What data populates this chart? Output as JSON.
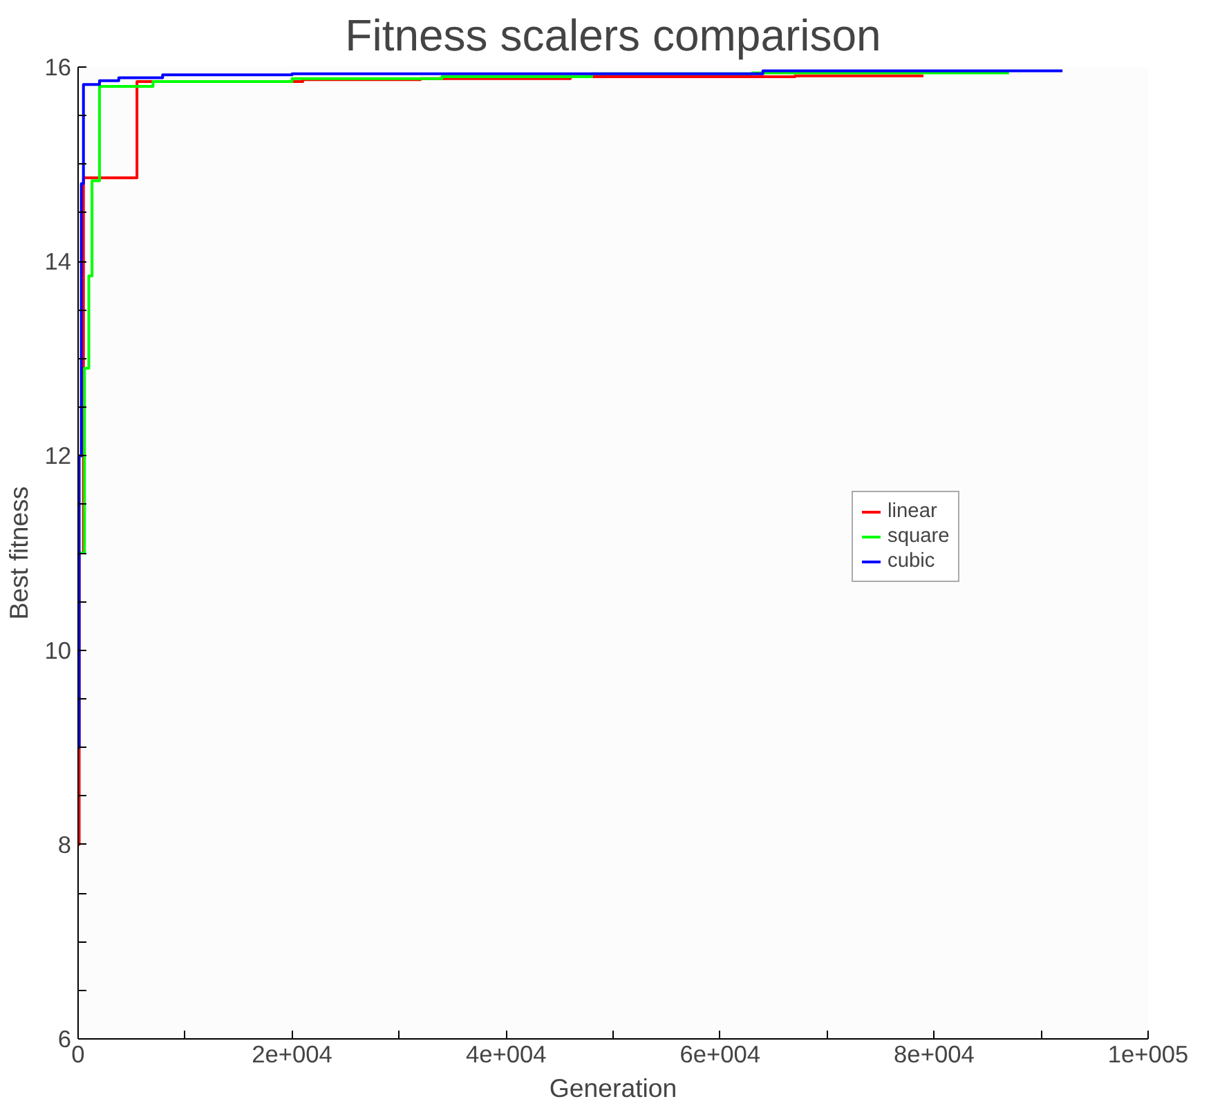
{
  "chart_data": {
    "type": "step",
    "title": "Fitness scalers comparison",
    "xlabel": "Generation",
    "ylabel": "Best fitness",
    "xlim": [
      0,
      100000
    ],
    "ylim": [
      6,
      16
    ],
    "xticks": [
      0,
      {
        "value": 10000,
        "label": null
      },
      {
        "value": 20000,
        "label": "2e+004"
      },
      {
        "value": 30000,
        "label": null
      },
      {
        "value": 40000,
        "label": "4e+004"
      },
      {
        "value": 50000,
        "label": null
      },
      {
        "value": 60000,
        "label": "6e+004"
      },
      {
        "value": 70000,
        "label": null
      },
      {
        "value": 80000,
        "label": "8e+004"
      },
      {
        "value": 90000,
        "label": null
      },
      {
        "value": 100000,
        "label": "1e+005"
      }
    ],
    "yticks": [
      6,
      {
        "value": 6.5,
        "label": null
      },
      {
        "value": 7,
        "label": null
      },
      {
        "value": 7.5,
        "label": null
      },
      8,
      {
        "value": 8.5,
        "label": null
      },
      {
        "value": 9,
        "label": null
      },
      {
        "value": 9.5,
        "label": null
      },
      10,
      {
        "value": 10.5,
        "label": null
      },
      {
        "value": 11,
        "label": null
      },
      {
        "value": 11.5,
        "label": null
      },
      12,
      {
        "value": 12.5,
        "label": null
      },
      {
        "value": 13,
        "label": null
      },
      {
        "value": 13.5,
        "label": null
      },
      14,
      {
        "value": 14.5,
        "label": null
      },
      {
        "value": 15,
        "label": null
      },
      {
        "value": 15.5,
        "label": null
      },
      16
    ],
    "grid": false,
    "legend": "right",
    "marker": "none",
    "line_style": "solid",
    "series": [
      {
        "name": "linear",
        "color": "#ff0000",
        "x": [
          0,
          100,
          500,
          5500,
          21000,
          32000,
          46000,
          67000,
          79000
        ],
        "values": [
          8.0,
          11.0,
          14.86,
          15.85,
          15.87,
          15.88,
          15.9,
          15.91,
          15.91
        ]
      },
      {
        "name": "square",
        "color": "#00ff00",
        "x": [
          0,
          600,
          1000,
          1300,
          2000,
          7000,
          20000,
          34000,
          48000,
          63000,
          87000
        ],
        "values": [
          11.0,
          12.9,
          13.85,
          14.83,
          15.8,
          15.85,
          15.88,
          15.9,
          15.93,
          15.94,
          15.94
        ]
      },
      {
        "name": "cubic",
        "color": "#0000ff",
        "x": [
          0,
          100,
          300,
          500,
          2000,
          3800,
          7900,
          20000,
          64000,
          92000
        ],
        "values": [
          9.0,
          12.0,
          14.8,
          15.82,
          15.86,
          15.89,
          15.92,
          15.93,
          15.96,
          15.96
        ]
      }
    ]
  }
}
